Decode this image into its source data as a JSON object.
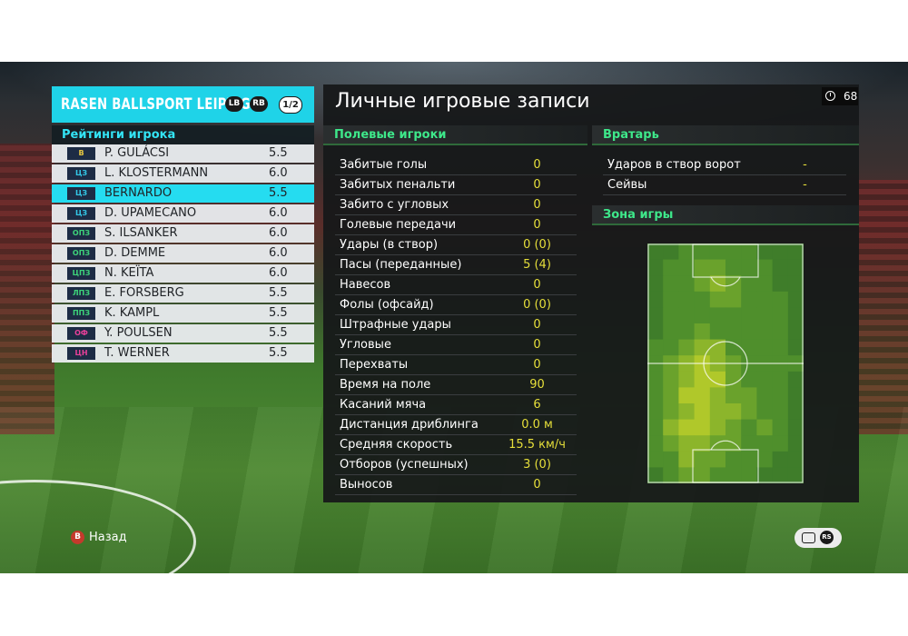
{
  "club": {
    "name": "RASEN BALLSPORT LEIPZIG",
    "lb": "LB",
    "rb": "RB",
    "page": "1/2"
  },
  "ratings_title": "Рейтинги игрока",
  "players": [
    {
      "pos": "В",
      "pos_color": "#e8c840",
      "name": "P. GULÁCSI",
      "rating": "5.5"
    },
    {
      "pos": "ЦЗ",
      "pos_color": "#33c8e8",
      "name": "L. KLOSTERMANN",
      "rating": "6.0"
    },
    {
      "pos": "ЦЗ",
      "pos_color": "#33c8e8",
      "name": "BERNARDO",
      "rating": "5.5"
    },
    {
      "pos": "ЦЗ",
      "pos_color": "#33c8e8",
      "name": "D. UPAMECANO",
      "rating": "6.0"
    },
    {
      "pos": "ОПЗ",
      "pos_color": "#3ed37a",
      "name": "S. ILSANKER",
      "rating": "6.0"
    },
    {
      "pos": "ОПЗ",
      "pos_color": "#3ed37a",
      "name": "D. DEMME",
      "rating": "6.0"
    },
    {
      "pos": "ЦПЗ",
      "pos_color": "#3ed37a",
      "name": "N. KEÏTA",
      "rating": "6.0"
    },
    {
      "pos": "ЛПЗ",
      "pos_color": "#3ed37a",
      "name": "E. FORSBERG",
      "rating": "5.5"
    },
    {
      "pos": "ППЗ",
      "pos_color": "#3ed37a",
      "name": "K. KAMPL",
      "rating": "5.5"
    },
    {
      "pos": "ОФ",
      "pos_color": "#e8409a",
      "name": "Y. POULSEN",
      "rating": "5.5"
    },
    {
      "pos": "ЦН",
      "pos_color": "#e8409a",
      "name": "T. WERNER",
      "rating": "5.5"
    }
  ],
  "selected_player_index": 2,
  "page_title": "Личные игровые записи",
  "timer": "68",
  "field_section": {
    "title": "Полевые игроки",
    "stats": [
      {
        "label": "Забитые голы",
        "value": "0"
      },
      {
        "label": "Забитых пенальти",
        "value": "0"
      },
      {
        "label": "Забито с угловых",
        "value": "0"
      },
      {
        "label": "Голевые передачи",
        "value": "0"
      },
      {
        "label": "Удары (в створ)",
        "value": "0 (0)"
      },
      {
        "label": "Пасы (переданные)",
        "value": "5 (4)"
      },
      {
        "label": "Навесов",
        "value": "0"
      },
      {
        "label": "Фолы (офсайд)",
        "value": "0 (0)"
      },
      {
        "label": "Штрафные удары",
        "value": "0"
      },
      {
        "label": "Угловые",
        "value": "0"
      },
      {
        "label": "Перехваты",
        "value": "0"
      },
      {
        "label": "Время на поле",
        "value": "90"
      },
      {
        "label": "Касаний мяча",
        "value": "6"
      },
      {
        "label": "Дистанция дриблинга",
        "value": "0.0 м"
      },
      {
        "label": "Средняя скорость",
        "value": "15.5 км/ч"
      },
      {
        "label": "Отборов (успешных)",
        "value": "3 (0)"
      },
      {
        "label": "Выносов",
        "value": "0"
      }
    ]
  },
  "gk_section": {
    "title": "Вратарь",
    "stats": [
      {
        "label": "Ударов в створ ворот",
        "value": "-"
      },
      {
        "label": "Сейвы",
        "value": "-"
      }
    ]
  },
  "zone_section": {
    "title": "Зона игры",
    "heat_colors": [
      "#3f7d2a",
      "#4f8f2c",
      "#6aa22c",
      "#8cb52b",
      "#b0c82a"
    ]
  },
  "footer": {
    "back_key": "B",
    "back_label": "Назад",
    "rs_label": "RS"
  }
}
